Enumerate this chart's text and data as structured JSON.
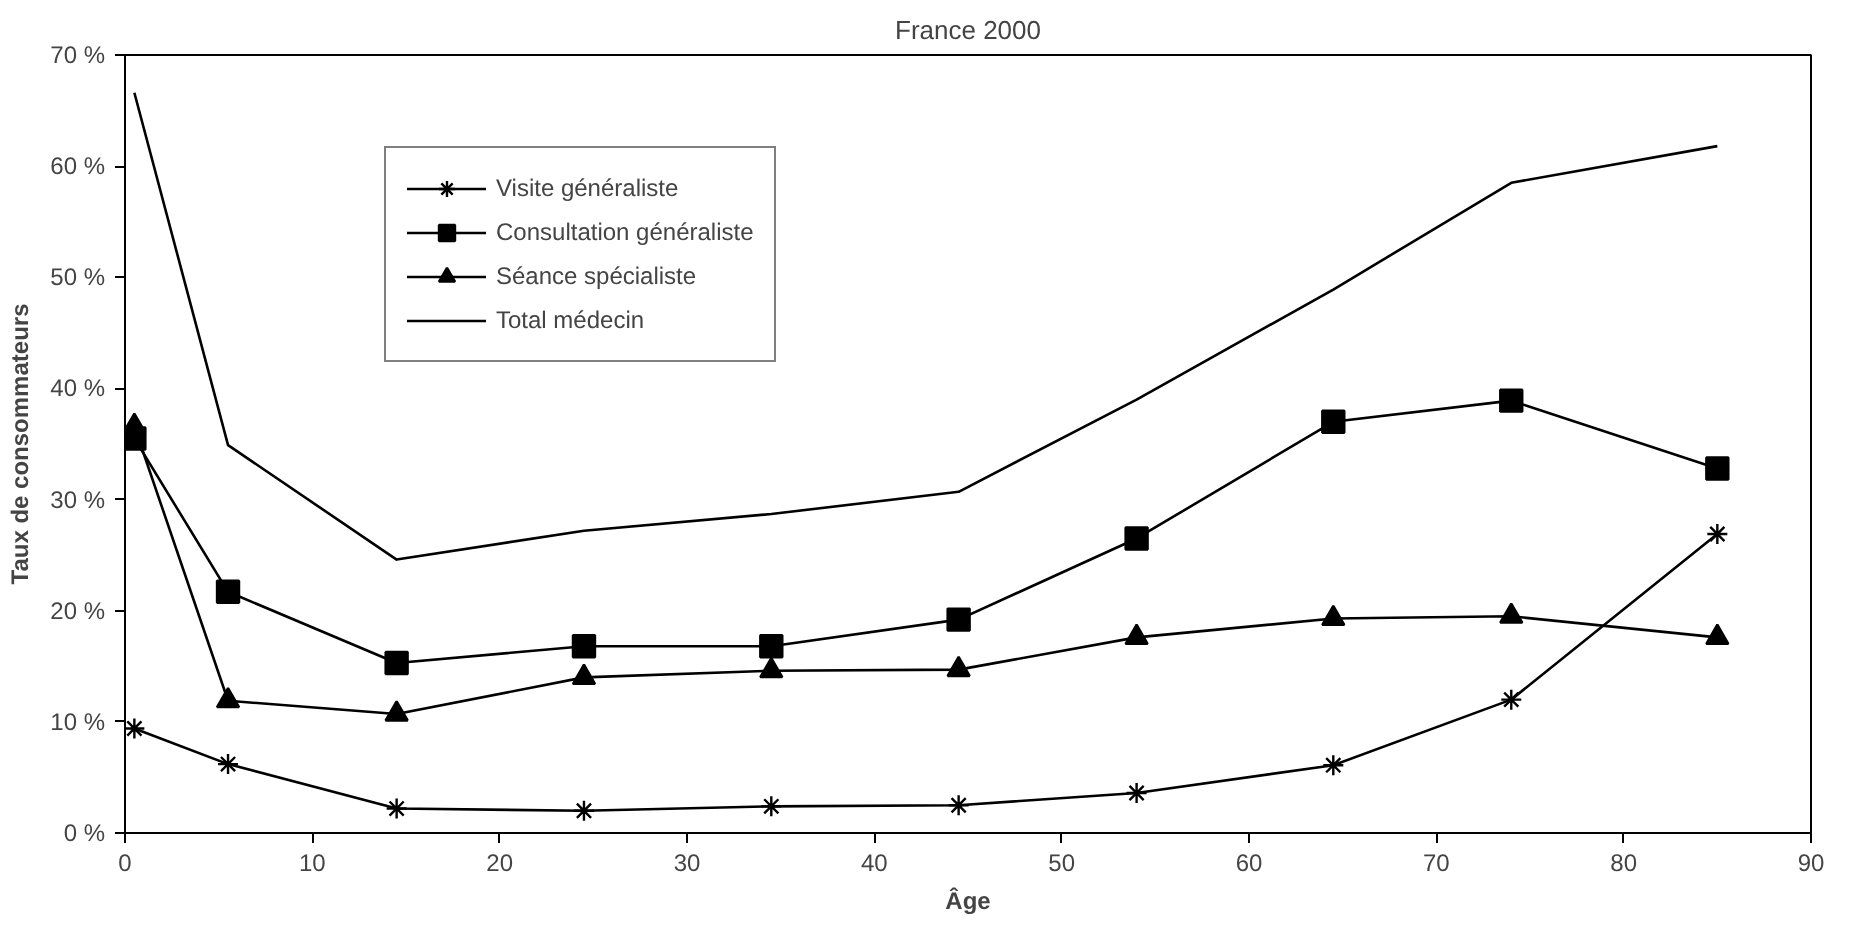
{
  "chart_data": {
    "type": "line",
    "title": "France 2000",
    "xlabel": "Âge",
    "ylabel": "Taux de consommateurs",
    "x": [
      0.5,
      5.5,
      14.5,
      24.5,
      34.5,
      44.5,
      54,
      64.5,
      74,
      85
    ],
    "series": [
      {
        "name": "Visite généraliste",
        "color": "#000000",
        "marker": "cross",
        "values": [
          9.4,
          6.2,
          2.2,
          2.0,
          2.4,
          2.5,
          3.6,
          6.1,
          12.0,
          26.9
        ]
      },
      {
        "name": "Consultation généraliste",
        "color": "#000000",
        "marker": "square",
        "values": [
          35.5,
          21.7,
          15.3,
          16.8,
          16.8,
          19.2,
          26.5,
          37.0,
          38.9,
          32.8
        ]
      },
      {
        "name": "Séance spécialiste",
        "color": "#000000",
        "marker": "triangle",
        "values": [
          36.6,
          11.9,
          10.7,
          14.0,
          14.6,
          14.7,
          17.6,
          19.3,
          19.5,
          17.6
        ]
      },
      {
        "name": "Total médecin",
        "color": "#000000",
        "marker": "none",
        "values": [
          66.6,
          34.9,
          24.6,
          27.2,
          28.7,
          30.7,
          39.0,
          48.9,
          58.5,
          61.8
        ]
      }
    ],
    "xlim": [
      0,
      90
    ],
    "xticks": [
      0,
      10,
      20,
      30,
      40,
      50,
      60,
      70,
      80,
      90
    ],
    "ylim": [
      0,
      70
    ],
    "yticks": [
      {
        "value": 0,
        "label": "0 %"
      },
      {
        "value": 10,
        "label": "10 %"
      },
      {
        "value": 20,
        "label": "20 %"
      },
      {
        "value": 30,
        "label": "30 %"
      },
      {
        "value": 40,
        "label": "40 %"
      },
      {
        "value": 50,
        "label": "50 %"
      },
      {
        "value": 60,
        "label": "60 %"
      },
      {
        "value": 70,
        "label": "70 %"
      }
    ],
    "grid": false,
    "legend": "top left",
    "line_style": "solid"
  }
}
